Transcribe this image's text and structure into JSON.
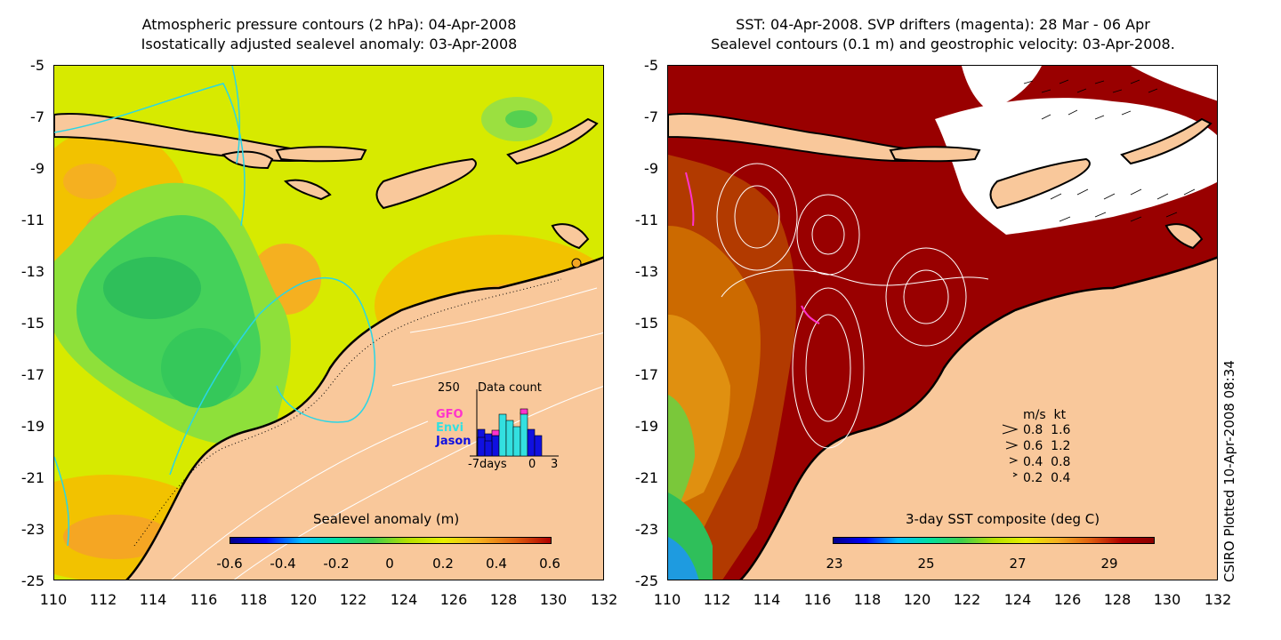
{
  "left_panel": {
    "title_line1": "Atmospheric pressure contours (2 hPa): 04-Apr-2008",
    "title_line2": "Isostatically adjusted sealevel anomaly: 03-Apr-2008",
    "colorbar_label": "Sealevel anomaly (m)",
    "colorbar_ticks": [
      "-0.6",
      "-0.4",
      "-0.2",
      "0",
      "0.2",
      "0.4",
      "0.6"
    ],
    "inset": {
      "count_max": "250",
      "title": "Data count",
      "satellites": [
        {
          "name": "GFO",
          "color": "#ff33cc"
        },
        {
          "name": "Envi",
          "color": "#33e0e0"
        },
        {
          "name": "Jason",
          "color": "#1010e0"
        }
      ],
      "x_labels": [
        "-7days",
        "0",
        "3"
      ]
    }
  },
  "right_panel": {
    "title_line1": "SST: 04-Apr-2008. SVP drifters (magenta): 28 Mar - 06 Apr",
    "title_line2": "Sealevel contours (0.1 m) and geostrophic velocity: 03-Apr-2008.",
    "colorbar_label": "3-day SST composite (deg C)",
    "colorbar_ticks": [
      "23",
      "25",
      "27",
      "29"
    ],
    "velocity_legend": {
      "header": "m/s  kt",
      "rows": [
        "0.8  1.6",
        "0.6  1.2",
        "0.4  0.8",
        "0.2  0.4"
      ]
    }
  },
  "axes": {
    "y_ticks": [
      "-5",
      "-7",
      "-9",
      "-11",
      "-13",
      "-15",
      "-17",
      "-19",
      "-21",
      "-23",
      "-25"
    ],
    "x_ticks": [
      "110",
      "112",
      "114",
      "116",
      "118",
      "120",
      "122",
      "124",
      "126",
      "128",
      "130",
      "132"
    ]
  },
  "credit": "CSIRO Plotted 10-Apr-2008 08:34",
  "colors": {
    "land": "#f9c89b",
    "sea_green": "#3fcf4c",
    "sea_yellow": "#e8f000",
    "sea_orange": "#f5b020",
    "sst_red": "#990000",
    "sst_orange": "#c85a00"
  }
}
